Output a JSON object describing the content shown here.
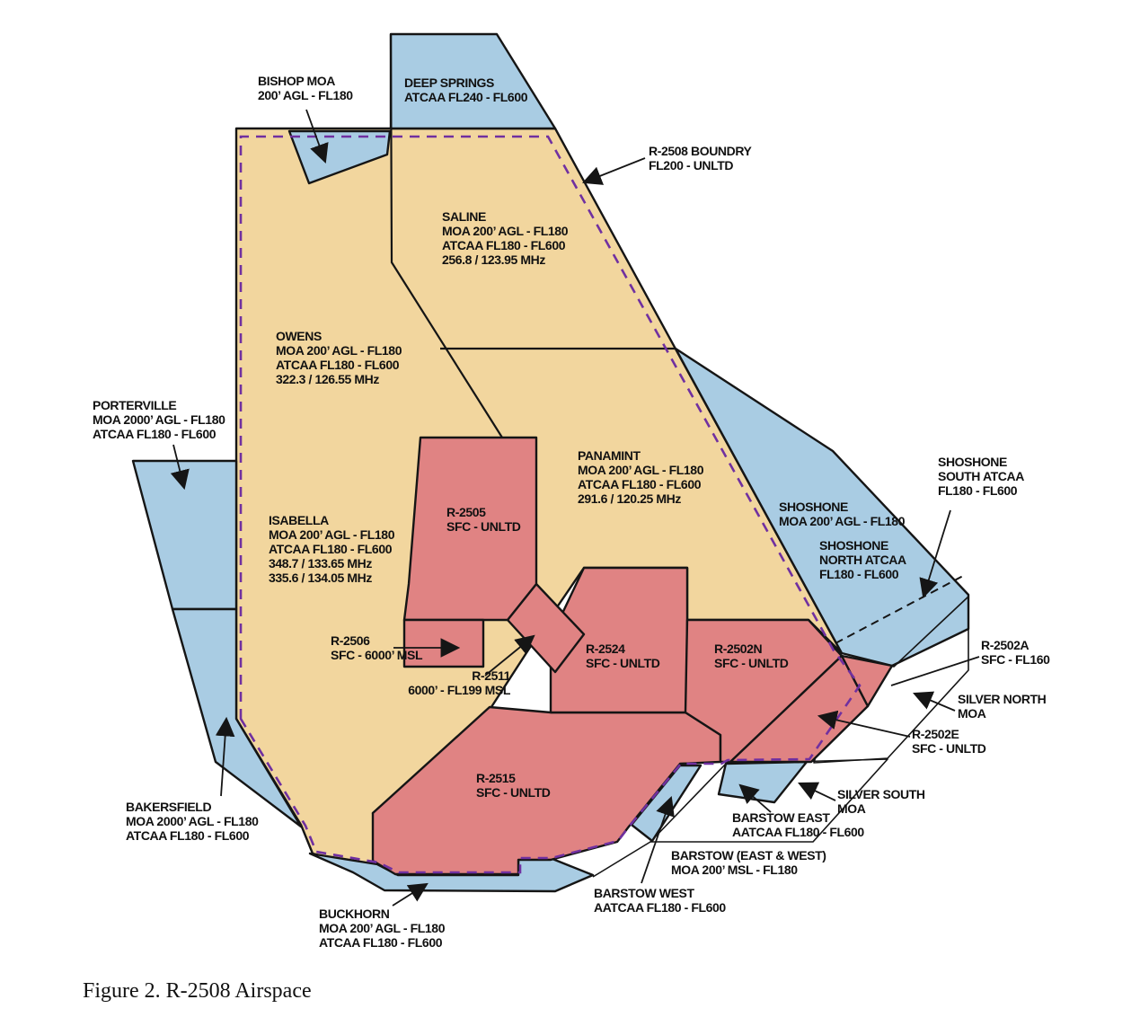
{
  "figure": {
    "caption": "Figure 2. R-2508 Airspace"
  },
  "colors": {
    "moa_tan": "#F2D69E",
    "atcaa_blue": "#A9CCE3",
    "restricted_red": "#E08383",
    "boundary_purple": "#7030A0",
    "line_black": "#151515",
    "background": "#FFFFFF"
  },
  "labels": {
    "bishop": {
      "lines": [
        "BISHOP MOA",
        "200’ AGL - FL180"
      ]
    },
    "deep_springs": {
      "lines": [
        "DEEP SPRINGS",
        "ATCAA FL240 - FL600"
      ]
    },
    "r2508_boundary": {
      "lines": [
        "R-2508 BOUNDRY",
        "FL200 - UNLTD"
      ]
    },
    "saline": {
      "lines": [
        "SALINE",
        "MOA 200’ AGL - FL180",
        "ATCAA FL180 - FL600",
        "256.8 / 123.95 MHz"
      ]
    },
    "owens": {
      "lines": [
        "OWENS",
        "MOA 200’ AGL - FL180",
        "ATCAA FL180 - FL600",
        "322.3 / 126.55 MHz"
      ]
    },
    "porterville": {
      "lines": [
        "PORTERVILLE",
        "MOA 2000’ AGL - FL180",
        "ATCAA FL180 - FL600"
      ]
    },
    "isabella": {
      "lines": [
        "ISABELLA",
        "MOA 200’ AGL - FL180",
        "ATCAA FL180 - FL600",
        "348.7 / 133.65 MHz",
        "335.6 / 134.05 MHz"
      ]
    },
    "panamint": {
      "lines": [
        "PANAMINT",
        "MOA 200’ AGL - FL180",
        "ATCAA FL180 - FL600",
        "291.6 / 120.25 MHz"
      ]
    },
    "shoshone_moa": {
      "lines": [
        "SHOSHONE",
        "MOA 200’ AGL - FL180"
      ]
    },
    "shoshone_north": {
      "lines": [
        "SHOSHONE",
        "NORTH ATCAA",
        "FL180 - FL600"
      ]
    },
    "shoshone_south": {
      "lines": [
        "SHOSHONE",
        "SOUTH ATCAA",
        "FL180 - FL600"
      ]
    },
    "r2505": {
      "lines": [
        "R-2505",
        "SFC - UNLTD"
      ]
    },
    "r2506": {
      "lines": [
        "R-2506",
        "SFC - 6000’ MSL"
      ]
    },
    "r2511": {
      "lines": [
        "R-2511",
        "6000’ - FL199 MSL"
      ]
    },
    "r2524": {
      "lines": [
        "R-2524",
        "SFC - UNLTD"
      ]
    },
    "r2502n": {
      "lines": [
        "R-2502N",
        "SFC - UNLTD"
      ]
    },
    "r2502a": {
      "lines": [
        "R-2502A",
        "SFC - FL160"
      ]
    },
    "silver_north": {
      "lines": [
        "SILVER NORTH",
        "MOA"
      ]
    },
    "r2502e": {
      "lines": [
        "R-2502E",
        "SFC - UNLTD"
      ]
    },
    "r2515": {
      "lines": [
        "R-2515",
        "SFC - UNLTD"
      ]
    },
    "silver_south": {
      "lines": [
        "SILVER SOUTH",
        "MOA"
      ]
    },
    "barstow_east": {
      "lines": [
        "BARSTOW EAST",
        "AATCAA FL180 - FL600"
      ]
    },
    "barstow_ew": {
      "lines": [
        "BARSTOW (EAST & WEST)",
        "MOA 200’ MSL - FL180"
      ]
    },
    "barstow_west": {
      "lines": [
        "BARSTOW WEST",
        "AATCAA FL180 - FL600"
      ]
    },
    "bakersfield": {
      "lines": [
        "BAKERSFIELD",
        "MOA 2000’ AGL - FL180",
        "ATCAA FL180 - FL600"
      ]
    },
    "buckhorn": {
      "lines": [
        "BUCKHORN",
        "MOA 200’ AGL - FL180",
        "ATCAA FL180 - FL600"
      ]
    }
  }
}
